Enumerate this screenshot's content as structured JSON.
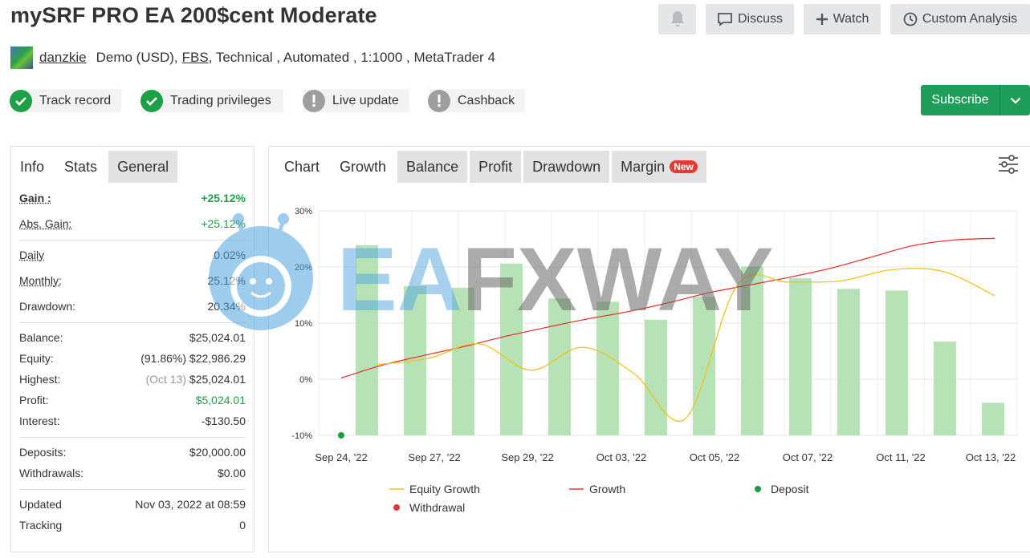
{
  "page": {
    "title": "mySRF PRO EA 200$cent Moderate",
    "buttons": {
      "bell": "bell-icon",
      "discuss": "Discuss",
      "watch": "Watch",
      "custom_analysis": "Custom Analysis"
    },
    "author": "danzkie",
    "account_prefix": "Demo (USD),",
    "broker": "FBS",
    "account_suffix": ", Technical , Automated , 1:1000 , MetaTrader 4",
    "badges": [
      {
        "label": "Track record",
        "status": "ok"
      },
      {
        "label": "Trading privileges",
        "status": "ok"
      },
      {
        "label": "Live update",
        "status": "warning"
      },
      {
        "label": "Cashback",
        "status": "warning"
      }
    ],
    "subscribe": "Subscribe",
    "watermark": "EAFXWAY"
  },
  "left_tabs": [
    "Info",
    "Stats",
    "General"
  ],
  "stats": {
    "gain_label": "Gain :",
    "gain": "+25.12%",
    "abs_gain_label": "Abs. Gain:",
    "abs_gain": "+25.12%",
    "daily_label": "Daily",
    "daily": "0.02%",
    "monthly_label": "Monthly:",
    "monthly": "25.12%",
    "drawdown_label": "Drawdown:",
    "drawdown": "20.34%",
    "balance_label": "Balance:",
    "balance": "$25,024.01",
    "equity_label": "Equity:",
    "equity_pct": "(91.86%)",
    "equity": "$22,986.29",
    "highest_label": "Highest:",
    "highest_date": "(Oct 13)",
    "highest": "$25,024.01",
    "profit_label": "Profit:",
    "profit": "$5,024.01",
    "interest_label": "Interest:",
    "interest": "-$130.50",
    "deposits_label": "Deposits:",
    "deposits": "$20,000.00",
    "withdrawals_label": "Withdrawals:",
    "withdrawals": "$0.00",
    "updated_label": "Updated",
    "updated": "Nov 03, 2022 at 08:59",
    "tracking_label": "Tracking",
    "tracking": "0"
  },
  "chart_tabs": [
    "Chart",
    "Growth",
    "Balance",
    "Profit",
    "Drawdown",
    "Margin"
  ],
  "new_badge": "New",
  "colors": {
    "green": "#1ea048",
    "subscribe": "#1e9e5a",
    "bar": "#b6e2b6",
    "equity_line": "#f2c21b",
    "growth_line": "#e53935",
    "deposit": "#1a9e3c",
    "withdrawal": "#e53935"
  },
  "chart_data": {
    "type": "bar+line",
    "y_ticks": [
      "30%",
      "20%",
      "10%",
      "0%",
      "-10%"
    ],
    "ylim": [
      -10,
      30
    ],
    "x_ticks": [
      "Sep 24, '22",
      "Sep 27, '22",
      "Sep 29, '22",
      "Oct 03, '22",
      "Oct 05, '22",
      "Oct 07, '22",
      "Oct 11, '22",
      "Oct 13, '22"
    ],
    "bars": [
      23.9,
      16.6,
      16.3,
      20.6,
      14.4,
      13.8,
      10.6,
      14.7,
      20.1,
      18.0,
      16.1,
      15.8,
      6.7,
      -4.2
    ],
    "growth": [
      0.2,
      2.5,
      4.2,
      5.8,
      7.6,
      9.2,
      10.7,
      12.0,
      13.6,
      15.4,
      16.8,
      18.2,
      19.8,
      21.8,
      23.8,
      24.8,
      25.1
    ],
    "equity_growth": [
      2.6,
      3.7,
      6.3,
      1.6,
      5.7,
      1.0,
      -7.0,
      16.7,
      17.3,
      17.5,
      19.5,
      19.2,
      14.9
    ],
    "deposit": {
      "x_label": "Sep 24, '22",
      "y": -10
    },
    "legend": [
      "Equity Growth",
      "Growth",
      "Deposit",
      "Withdrawal"
    ]
  }
}
